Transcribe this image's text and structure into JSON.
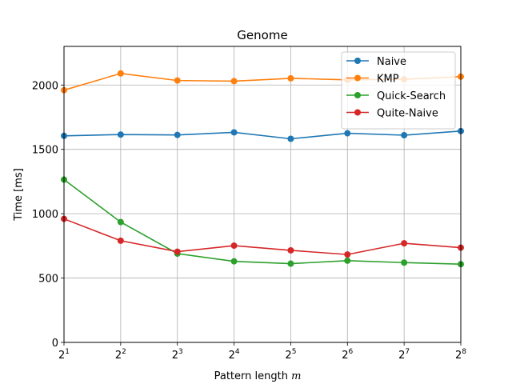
{
  "chart_data": {
    "type": "line",
    "title": "Genome",
    "xlabel": "Pattern length",
    "xlabel_var": "m",
    "ylabel": "Time [ms]",
    "x": [
      1,
      2,
      3,
      4,
      5,
      6,
      7,
      8
    ],
    "x_tick_base": "2",
    "x_scale": "log2",
    "ylim": [
      0,
      2300
    ],
    "y_ticks": [
      0,
      500,
      1000,
      1500,
      2000
    ],
    "grid": true,
    "legend_position": "top-right",
    "series": [
      {
        "name": "Naive",
        "color": "#1f77b4",
        "values": [
          1605,
          1615,
          1612,
          1632,
          1582,
          1625,
          1610,
          1642
        ]
      },
      {
        "name": "KMP",
        "color": "#ff7f0e",
        "values": [
          1960,
          2090,
          2035,
          2030,
          2052,
          2040,
          2045,
          2065
        ]
      },
      {
        "name": "Quick-Search",
        "color": "#2ca02c",
        "values": [
          1265,
          935,
          690,
          630,
          612,
          635,
          620,
          608
        ]
      },
      {
        "name": "Quite-Naive",
        "color": "#d62728",
        "values": [
          960,
          790,
          705,
          752,
          715,
          683,
          770,
          736
        ]
      }
    ]
  }
}
